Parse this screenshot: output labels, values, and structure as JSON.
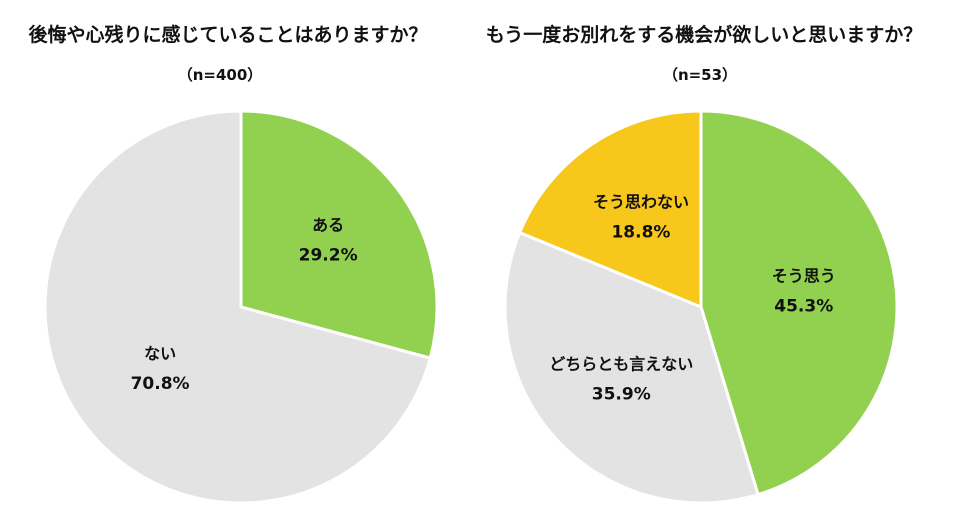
{
  "chart_data": [
    {
      "type": "pie",
      "title": "後悔や心残りに感じていることはありますか？",
      "subtitle": "（n=400）",
      "categories": [
        "ある",
        "ない"
      ],
      "values": [
        29.2,
        70.8
      ],
      "value_labels": [
        "29.2%",
        "70.8%"
      ],
      "colors": [
        "#92d050",
        "#e3e3e3"
      ],
      "start": "12 o'clock",
      "direction": "clockwise",
      "legend": "none (labels inside slices)"
    },
    {
      "type": "pie",
      "title": "もう一度お別れをする機会が欲しいと思いますか？",
      "subtitle": "（n=53）",
      "categories": [
        "そう思う",
        "どちらとも言えない",
        "そう思わない"
      ],
      "values": [
        45.3,
        35.9,
        18.8
      ],
      "value_labels": [
        "45.3%",
        "35.9%",
        "18.8%"
      ],
      "colors": [
        "#92d050",
        "#e3e3e3",
        "#f7c71c"
      ],
      "start": "12 o'clock",
      "direction": "clockwise",
      "legend": "none (labels inside slices)"
    }
  ]
}
